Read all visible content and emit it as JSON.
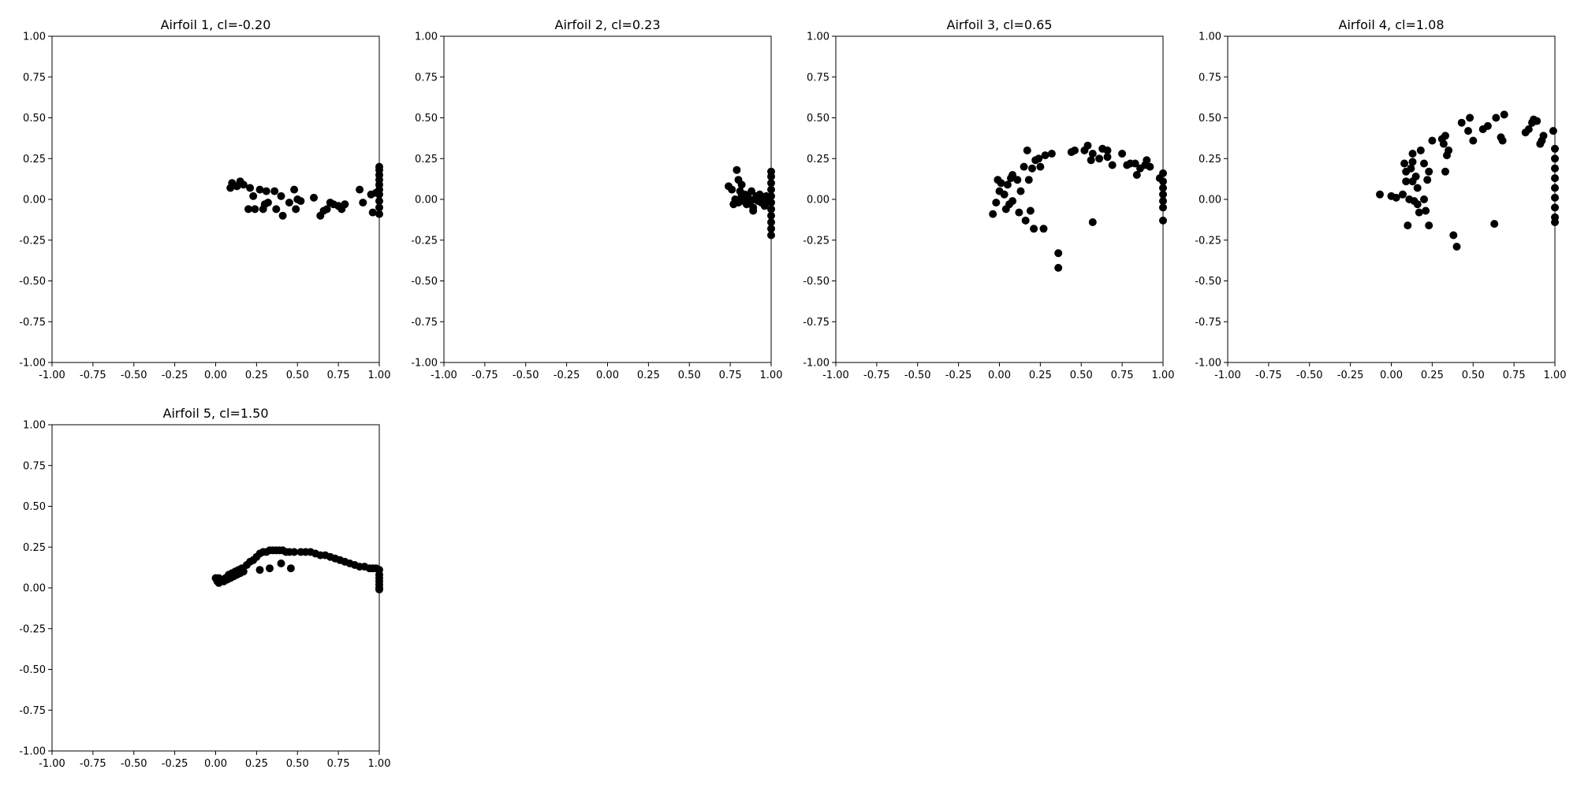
{
  "figure": {
    "background": "#ffffff",
    "marker_color": "#000000"
  },
  "chart_data": [
    {
      "type": "scatter",
      "title": "Airfoil 1, cl=-0.20",
      "xlabel": "",
      "ylabel": "",
      "xlim": [
        -1.0,
        1.0
      ],
      "ylim": [
        -1.0,
        1.0
      ],
      "xticks": [
        "-1.00",
        "-0.75",
        "-0.50",
        "-0.25",
        "0.00",
        "0.25",
        "0.50",
        "0.75",
        "1.00"
      ],
      "yticks": [
        "-1.00",
        "-0.75",
        "-0.50",
        "-0.25",
        "0.00",
        "0.25",
        "0.50",
        "0.75",
        "1.00"
      ],
      "grid": false,
      "points": [
        [
          0.09,
          0.07
        ],
        [
          0.1,
          0.1
        ],
        [
          0.13,
          0.08
        ],
        [
          0.15,
          0.11
        ],
        [
          0.17,
          0.09
        ],
        [
          0.21,
          0.07
        ],
        [
          0.2,
          -0.06
        ],
        [
          0.23,
          0.02
        ],
        [
          0.24,
          -0.06
        ],
        [
          0.27,
          0.06
        ],
        [
          0.29,
          -0.06
        ],
        [
          0.3,
          -0.03
        ],
        [
          0.31,
          0.05
        ],
        [
          0.32,
          -0.02
        ],
        [
          0.36,
          0.05
        ],
        [
          0.37,
          -0.06
        ],
        [
          0.4,
          0.02
        ],
        [
          0.41,
          -0.1
        ],
        [
          0.45,
          -0.02
        ],
        [
          0.48,
          0.06
        ],
        [
          0.49,
          -0.06
        ],
        [
          0.5,
          0.0
        ],
        [
          0.52,
          -0.01
        ],
        [
          0.6,
          0.01
        ],
        [
          0.64,
          -0.1
        ],
        [
          0.66,
          -0.07
        ],
        [
          0.68,
          -0.06
        ],
        [
          0.7,
          -0.02
        ],
        [
          0.72,
          -0.03
        ],
        [
          0.75,
          -0.04
        ],
        [
          0.77,
          -0.06
        ],
        [
          0.79,
          -0.03
        ],
        [
          0.88,
          0.06
        ],
        [
          0.9,
          -0.02
        ],
        [
          0.95,
          0.03
        ],
        [
          0.96,
          -0.08
        ],
        [
          0.98,
          0.04
        ],
        [
          1.0,
          -0.09
        ],
        [
          1.0,
          -0.05
        ],
        [
          1.0,
          -0.01
        ],
        [
          1.0,
          0.03
        ],
        [
          1.0,
          0.06
        ],
        [
          1.0,
          0.09
        ],
        [
          1.0,
          0.12
        ],
        [
          1.0,
          0.15
        ],
        [
          1.0,
          0.18
        ],
        [
          1.0,
          0.2
        ]
      ]
    },
    {
      "type": "scatter",
      "title": "Airfoil 2, cl=0.23",
      "xlabel": "",
      "ylabel": "",
      "xlim": [
        -1.0,
        1.0
      ],
      "ylim": [
        -1.0,
        1.0
      ],
      "xticks": [
        "-1.00",
        "-0.75",
        "-0.50",
        "-0.25",
        "0.00",
        "0.25",
        "0.50",
        "0.75",
        "1.00"
      ],
      "yticks": [
        "-1.00",
        "-0.75",
        "-0.50",
        "-0.25",
        "0.00",
        "0.25",
        "0.50",
        "0.75",
        "1.00"
      ],
      "grid": false,
      "points": [
        [
          0.74,
          0.08
        ],
        [
          0.76,
          0.06
        ],
        [
          0.77,
          -0.03
        ],
        [
          0.78,
          0.0
        ],
        [
          0.79,
          0.18
        ],
        [
          0.8,
          0.12
        ],
        [
          0.8,
          -0.02
        ],
        [
          0.81,
          0.05
        ],
        [
          0.82,
          0.09
        ],
        [
          0.82,
          0.02
        ],
        [
          0.83,
          -0.01
        ],
        [
          0.84,
          0.03
        ],
        [
          0.85,
          -0.03
        ],
        [
          0.86,
          0.01
        ],
        [
          0.87,
          -0.02
        ],
        [
          0.88,
          0.05
        ],
        [
          0.89,
          -0.05
        ],
        [
          0.89,
          -0.07
        ],
        [
          0.9,
          0.0
        ],
        [
          0.91,
          0.02
        ],
        [
          0.92,
          -0.01
        ],
        [
          0.93,
          0.03
        ],
        [
          0.94,
          -0.02
        ],
        [
          0.95,
          0.01
        ],
        [
          0.96,
          -0.04
        ],
        [
          0.97,
          0.02
        ],
        [
          0.98,
          -0.01
        ],
        [
          0.99,
          0.0
        ],
        [
          1.0,
          -0.22
        ],
        [
          1.0,
          -0.18
        ],
        [
          1.0,
          -0.14
        ],
        [
          1.0,
          -0.1
        ],
        [
          1.0,
          -0.06
        ],
        [
          1.0,
          -0.02
        ],
        [
          1.0,
          0.02
        ],
        [
          1.0,
          0.06
        ],
        [
          1.0,
          0.1
        ],
        [
          1.0,
          0.14
        ],
        [
          1.0,
          0.17
        ]
      ]
    },
    {
      "type": "scatter",
      "title": "Airfoil 3, cl=0.65",
      "xlabel": "",
      "ylabel": "",
      "xlim": [
        -1.0,
        1.0
      ],
      "ylim": [
        -1.0,
        1.0
      ],
      "xticks": [
        "-1.00",
        "-0.75",
        "-0.50",
        "-0.25",
        "0.00",
        "0.25",
        "0.50",
        "0.75",
        "1.00"
      ],
      "yticks": [
        "-1.00",
        "-0.75",
        "-0.50",
        "-0.25",
        "0.00",
        "0.25",
        "0.50",
        "0.75",
        "1.00"
      ],
      "grid": false,
      "points": [
        [
          -0.04,
          -0.09
        ],
        [
          -0.02,
          -0.02
        ],
        [
          -0.01,
          0.12
        ],
        [
          0.0,
          0.05
        ],
        [
          0.01,
          0.1
        ],
        [
          0.03,
          0.03
        ],
        [
          0.04,
          -0.06
        ],
        [
          0.05,
          0.09
        ],
        [
          0.06,
          -0.03
        ],
        [
          0.07,
          0.13
        ],
        [
          0.08,
          0.15
        ],
        [
          0.08,
          -0.01
        ],
        [
          0.11,
          0.12
        ],
        [
          0.12,
          -0.08
        ],
        [
          0.13,
          0.05
        ],
        [
          0.15,
          0.2
        ],
        [
          0.16,
          -0.13
        ],
        [
          0.17,
          0.3
        ],
        [
          0.18,
          0.12
        ],
        [
          0.19,
          -0.07
        ],
        [
          0.2,
          0.19
        ],
        [
          0.21,
          -0.18
        ],
        [
          0.22,
          0.24
        ],
        [
          0.24,
          0.25
        ],
        [
          0.25,
          0.2
        ],
        [
          0.27,
          -0.18
        ],
        [
          0.28,
          0.27
        ],
        [
          0.32,
          0.28
        ],
        [
          0.36,
          -0.33
        ],
        [
          0.36,
          -0.42
        ],
        [
          0.44,
          0.29
        ],
        [
          0.46,
          0.3
        ],
        [
          0.52,
          0.3
        ],
        [
          0.54,
          0.33
        ],
        [
          0.56,
          0.24
        ],
        [
          0.57,
          0.28
        ],
        [
          0.57,
          -0.14
        ],
        [
          0.61,
          0.25
        ],
        [
          0.63,
          0.31
        ],
        [
          0.66,
          0.26
        ],
        [
          0.66,
          0.3
        ],
        [
          0.69,
          0.21
        ],
        [
          0.75,
          0.28
        ],
        [
          0.78,
          0.21
        ],
        [
          0.8,
          0.22
        ],
        [
          0.83,
          0.22
        ],
        [
          0.84,
          0.15
        ],
        [
          0.86,
          0.19
        ],
        [
          0.89,
          0.21
        ],
        [
          0.9,
          0.24
        ],
        [
          0.92,
          0.2
        ],
        [
          0.98,
          0.13
        ],
        [
          1.0,
          0.16
        ],
        [
          1.0,
          0.11
        ],
        [
          1.0,
          0.07
        ],
        [
          1.0,
          0.03
        ],
        [
          1.0,
          -0.01
        ],
        [
          1.0,
          -0.05
        ],
        [
          1.0,
          -0.13
        ]
      ]
    },
    {
      "type": "scatter",
      "title": "Airfoil 4, cl=1.08",
      "xlabel": "",
      "ylabel": "",
      "xlim": [
        -1.0,
        1.0
      ],
      "ylim": [
        -1.0,
        1.0
      ],
      "xticks": [
        "-1.00",
        "-0.75",
        "-0.50",
        "-0.25",
        "0.00",
        "0.25",
        "0.50",
        "0.75",
        "1.00"
      ],
      "yticks": [
        "-1.00",
        "-0.75",
        "-0.50",
        "-0.25",
        "0.00",
        "0.25",
        "0.50",
        "0.75",
        "1.00"
      ],
      "grid": false,
      "points": [
        [
          -0.07,
          0.03
        ],
        [
          0.0,
          0.02
        ],
        [
          0.03,
          0.01
        ],
        [
          0.07,
          0.03
        ],
        [
          0.08,
          0.22
        ],
        [
          0.09,
          0.17
        ],
        [
          0.09,
          0.11
        ],
        [
          0.1,
          -0.16
        ],
        [
          0.11,
          0.0
        ],
        [
          0.12,
          0.19
        ],
        [
          0.13,
          0.28
        ],
        [
          0.13,
          0.11
        ],
        [
          0.13,
          0.23
        ],
        [
          0.14,
          -0.01
        ],
        [
          0.15,
          0.14
        ],
        [
          0.16,
          0.07
        ],
        [
          0.16,
          -0.03
        ],
        [
          0.17,
          -0.08
        ],
        [
          0.18,
          0.3
        ],
        [
          0.2,
          0.0
        ],
        [
          0.2,
          0.22
        ],
        [
          0.21,
          -0.07
        ],
        [
          0.22,
          0.12
        ],
        [
          0.23,
          -0.16
        ],
        [
          0.23,
          0.17
        ],
        [
          0.25,
          0.36
        ],
        [
          0.31,
          0.37
        ],
        [
          0.32,
          0.34
        ],
        [
          0.33,
          0.17
        ],
        [
          0.33,
          0.39
        ],
        [
          0.34,
          0.27
        ],
        [
          0.35,
          0.3
        ],
        [
          0.38,
          -0.22
        ],
        [
          0.4,
          -0.29
        ],
        [
          0.43,
          0.47
        ],
        [
          0.47,
          0.42
        ],
        [
          0.48,
          0.5
        ],
        [
          0.5,
          0.36
        ],
        [
          0.56,
          0.43
        ],
        [
          0.59,
          0.45
        ],
        [
          0.63,
          -0.15
        ],
        [
          0.64,
          0.5
        ],
        [
          0.67,
          0.38
        ],
        [
          0.68,
          0.36
        ],
        [
          0.69,
          0.52
        ],
        [
          0.82,
          0.41
        ],
        [
          0.84,
          0.43
        ],
        [
          0.86,
          0.47
        ],
        [
          0.87,
          0.49
        ],
        [
          0.89,
          0.48
        ],
        [
          0.91,
          0.34
        ],
        [
          0.92,
          0.36
        ],
        [
          0.93,
          0.39
        ],
        [
          0.99,
          0.42
        ],
        [
          1.0,
          0.31
        ],
        [
          1.0,
          0.25
        ],
        [
          1.0,
          0.19
        ],
        [
          1.0,
          0.13
        ],
        [
          1.0,
          0.07
        ],
        [
          1.0,
          0.01
        ],
        [
          1.0,
          -0.05
        ],
        [
          1.0,
          -0.11
        ],
        [
          1.0,
          -0.14
        ]
      ]
    },
    {
      "type": "scatter",
      "title": "Airfoil 5, cl=1.50",
      "xlabel": "",
      "ylabel": "",
      "xlim": [
        -1.0,
        1.0
      ],
      "ylim": [
        -1.0,
        1.0
      ],
      "xticks": [
        "-1.00",
        "-0.75",
        "-0.50",
        "-0.25",
        "0.00",
        "0.25",
        "0.50",
        "0.75",
        "1.00"
      ],
      "yticks": [
        "-1.00",
        "-0.75",
        "-0.50",
        "-0.25",
        "0.00",
        "0.25",
        "0.50",
        "0.75",
        "1.00"
      ],
      "grid": false,
      "points": [
        [
          0.0,
          0.06
        ],
        [
          0.01,
          0.04
        ],
        [
          0.02,
          0.03
        ],
        [
          0.02,
          0.06
        ],
        [
          0.03,
          0.05
        ],
        [
          0.05,
          0.04
        ],
        [
          0.06,
          0.06
        ],
        [
          0.07,
          0.05
        ],
        [
          0.08,
          0.08
        ],
        [
          0.09,
          0.06
        ],
        [
          0.1,
          0.09
        ],
        [
          0.11,
          0.07
        ],
        [
          0.12,
          0.1
        ],
        [
          0.13,
          0.08
        ],
        [
          0.14,
          0.11
        ],
        [
          0.15,
          0.09
        ],
        [
          0.16,
          0.12
        ],
        [
          0.17,
          0.1
        ],
        [
          0.19,
          0.14
        ],
        [
          0.21,
          0.16
        ],
        [
          0.23,
          0.17
        ],
        [
          0.25,
          0.19
        ],
        [
          0.27,
          0.21
        ],
        [
          0.29,
          0.22
        ],
        [
          0.31,
          0.22
        ],
        [
          0.33,
          0.23
        ],
        [
          0.35,
          0.23
        ],
        [
          0.37,
          0.23
        ],
        [
          0.39,
          0.23
        ],
        [
          0.41,
          0.23
        ],
        [
          0.43,
          0.22
        ],
        [
          0.45,
          0.22
        ],
        [
          0.48,
          0.22
        ],
        [
          0.52,
          0.22
        ],
        [
          0.55,
          0.22
        ],
        [
          0.58,
          0.22
        ],
        [
          0.61,
          0.21
        ],
        [
          0.64,
          0.2
        ],
        [
          0.67,
          0.2
        ],
        [
          0.7,
          0.19
        ],
        [
          0.73,
          0.18
        ],
        [
          0.76,
          0.17
        ],
        [
          0.79,
          0.16
        ],
        [
          0.82,
          0.15
        ],
        [
          0.85,
          0.14
        ],
        [
          0.88,
          0.13
        ],
        [
          0.91,
          0.13
        ],
        [
          0.94,
          0.12
        ],
        [
          0.96,
          0.12
        ],
        [
          0.98,
          0.12
        ],
        [
          0.27,
          0.11
        ],
        [
          0.33,
          0.12
        ],
        [
          0.4,
          0.15
        ],
        [
          0.46,
          0.12
        ],
        [
          1.0,
          0.11
        ],
        [
          1.0,
          0.08
        ],
        [
          1.0,
          0.06
        ],
        [
          1.0,
          0.04
        ],
        [
          1.0,
          0.02
        ],
        [
          1.0,
          0.0
        ],
        [
          1.0,
          -0.01
        ]
      ]
    }
  ]
}
